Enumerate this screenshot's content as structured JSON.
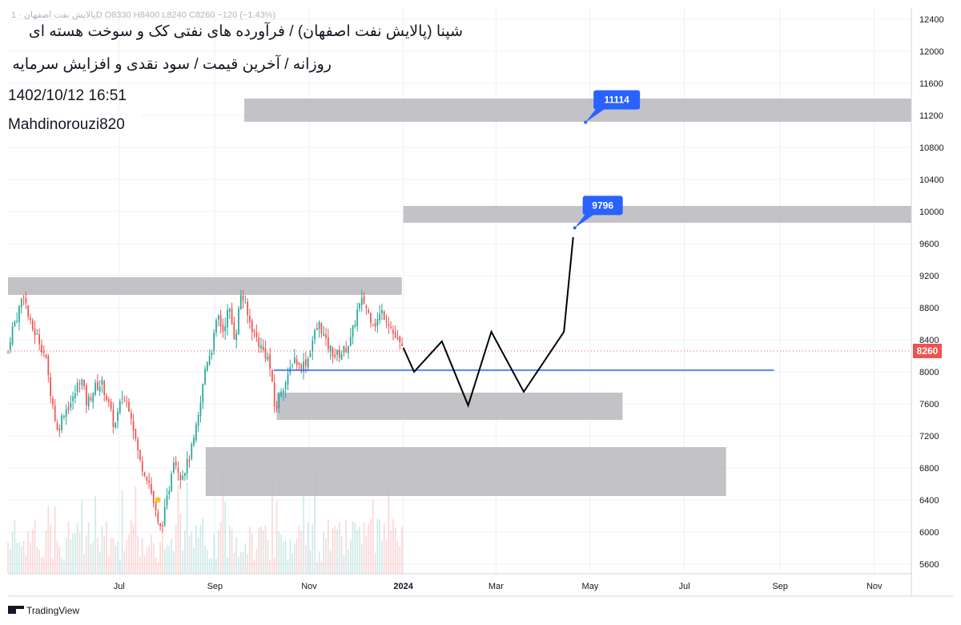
{
  "header": {
    "symbol_line": "پالایش نفت اصفهان · 1D  O8330  H8400  L8240  C8260  −120 (−1.43%)",
    "title_line1": "شپنا (پالایش نفت اصفهان) / فرآورده های نفتی کک و سوخت هسته ای",
    "title_line2": "روزانه / آخرین قیمت / سود نقدی و افزایش سرمایه",
    "timestamp": "1402/10/12 16:51",
    "author": "Mahdinorouzi820"
  },
  "footer": {
    "brand": "TradingView"
  },
  "colors": {
    "up": "#26a69a",
    "down": "#ef5350",
    "zone": "#b8b9bd",
    "support_line": "#2962ff",
    "projection": "#000000",
    "callout": "#2962ff",
    "last_price": "#ef5350",
    "grid": "#eef0f3"
  },
  "chart_data": {
    "type": "candlestick",
    "interval": "1D",
    "x_axis": {
      "ticks": [
        "Jul",
        "Sep",
        "Nov",
        "2024",
        "Mar",
        "May",
        "Jul",
        "Sep",
        "Nov"
      ],
      "tick_dates": [
        "2023-07-01",
        "2023-09-01",
        "2023-11-01",
        "2024-01-01",
        "2024-03-01",
        "2024-05-01",
        "2024-07-01",
        "2024-09-01",
        "2024-11-01"
      ],
      "range": [
        "2023-04-20",
        "2024-11-25"
      ]
    },
    "y_axis": {
      "ticks": [
        5600,
        6000,
        6400,
        6800,
        7200,
        7600,
        8000,
        8400,
        8800,
        9200,
        9600,
        10000,
        10400,
        10800,
        11200,
        11600,
        12000,
        12400
      ],
      "range": [
        5480,
        12540
      ]
    },
    "last_price": 8260,
    "ohlc": {
      "open": 8330,
      "high": 8400,
      "low": 8240,
      "close": 8260,
      "change": -120,
      "change_pct": -1.43
    },
    "price_path": [
      [
        "2023-04-20",
        8250
      ],
      [
        "2023-04-22",
        8500
      ],
      [
        "2023-04-26",
        8700
      ],
      [
        "2023-04-30",
        9000
      ],
      [
        "2023-05-04",
        8600
      ],
      [
        "2023-05-10",
        8400
      ],
      [
        "2023-05-14",
        8200
      ],
      [
        "2023-05-18",
        7700
      ],
      [
        "2023-05-22",
        7250
      ],
      [
        "2023-05-26",
        7500
      ],
      [
        "2023-06-01",
        7650
      ],
      [
        "2023-06-06",
        7950
      ],
      [
        "2023-06-10",
        7600
      ],
      [
        "2023-06-15",
        7800
      ],
      [
        "2023-06-20",
        7850
      ],
      [
        "2023-06-24",
        7600
      ],
      [
        "2023-06-28",
        7300
      ],
      [
        "2023-07-03",
        7700
      ],
      [
        "2023-07-08",
        7550
      ],
      [
        "2023-07-14",
        6900
      ],
      [
        "2023-07-20",
        6650
      ],
      [
        "2023-07-24",
        6300
      ],
      [
        "2023-07-27",
        6000
      ],
      [
        "2023-07-30",
        6200
      ],
      [
        "2023-08-02",
        6500
      ],
      [
        "2023-08-05",
        6950
      ],
      [
        "2023-08-10",
        6700
      ],
      [
        "2023-08-14",
        6850
      ],
      [
        "2023-08-18",
        7100
      ],
      [
        "2023-08-22",
        7500
      ],
      [
        "2023-08-26",
        8100
      ],
      [
        "2023-08-30",
        8300
      ],
      [
        "2023-09-03",
        8700
      ],
      [
        "2023-09-06",
        8500
      ],
      [
        "2023-09-10",
        8800
      ],
      [
        "2023-09-14",
        8400
      ],
      [
        "2023-09-18",
        9000
      ],
      [
        "2023-09-22",
        8700
      ],
      [
        "2023-09-26",
        8500
      ],
      [
        "2023-10-01",
        8300
      ],
      [
        "2023-10-06",
        8150
      ],
      [
        "2023-10-10",
        7500
      ],
      [
        "2023-10-14",
        7800
      ],
      [
        "2023-10-18",
        7900
      ],
      [
        "2023-10-22",
        8200
      ],
      [
        "2023-10-26",
        8050
      ],
      [
        "2023-10-31",
        8150
      ],
      [
        "2023-11-04",
        8450
      ],
      [
        "2023-11-08",
        8600
      ],
      [
        "2023-11-12",
        8350
      ],
      [
        "2023-11-18",
        8200
      ],
      [
        "2023-11-23",
        8250
      ],
      [
        "2023-11-28",
        8400
      ],
      [
        "2023-12-02",
        8750
      ],
      [
        "2023-12-06",
        8900
      ],
      [
        "2023-12-10",
        8700
      ],
      [
        "2023-12-14",
        8600
      ],
      [
        "2023-12-18",
        8750
      ],
      [
        "2023-12-22",
        8650
      ],
      [
        "2023-12-26",
        8450
      ],
      [
        "2024-01-01",
        8260
      ]
    ],
    "volume_visible": true,
    "zones": [
      {
        "from": "2023-04-20",
        "to": "2023-12-31",
        "low": 8960,
        "high": 9180
      },
      {
        "from": "2023-09-20",
        "to": "2024-11-25",
        "low": 11120,
        "high": 11410
      },
      {
        "from": "2024-01-01",
        "to": "2024-11-25",
        "low": 9860,
        "high": 10070
      },
      {
        "from": "2023-10-11",
        "to": "2024-05-22",
        "low": 7400,
        "high": 7740
      },
      {
        "from": "2023-08-26",
        "to": "2024-07-28",
        "low": 6450,
        "high": 7060
      }
    ],
    "support_line": {
      "price": 8020,
      "from": "2023-10-09",
      "to": "2024-08-28"
    },
    "projection": [
      [
        "2024-01-01",
        8300
      ],
      [
        "2024-01-08",
        8000
      ],
      [
        "2024-01-26",
        8380
      ],
      [
        "2024-02-12",
        7580
      ],
      [
        "2024-02-27",
        8500
      ],
      [
        "2024-03-19",
        7750
      ],
      [
        "2024-04-14",
        8500
      ],
      [
        "2024-04-20",
        9680
      ]
    ],
    "callouts": [
      {
        "text": "9796",
        "date": "2024-04-21",
        "price": 9796
      },
      {
        "text": "11114",
        "date": "2024-04-28",
        "price": 11114
      }
    ]
  }
}
